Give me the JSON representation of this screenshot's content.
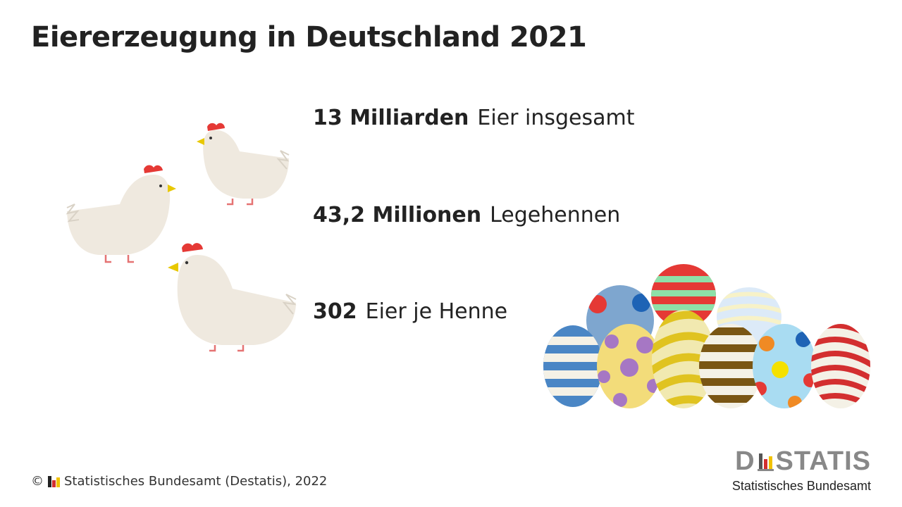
{
  "title": "Eiererzeugung in Deutschland 2021",
  "stats": [
    {
      "value": "13 Milliarden",
      "label": "Eier insgesamt"
    },
    {
      "value": "43,2 Millionen",
      "label": "Legehennen"
    },
    {
      "value": "302",
      "label": "Eier je Henne"
    }
  ],
  "footer": {
    "copyright": "©",
    "source": "Statistisches Bundesamt (Destatis), 2022"
  },
  "logo": {
    "word_start": "D",
    "word_end": "STATIS",
    "subtitle": "Statistisches Bundesamt"
  },
  "colors": {
    "flag_black": "#222222",
    "flag_red": "#d32f2f",
    "flag_gold": "#f2c200",
    "hen_body": "#efe9df",
    "hen_comb": "#e53935",
    "hen_beak": "#e8c800"
  },
  "icons": [
    "hen-icon",
    "easter-egg-icon",
    "flag-icon"
  ]
}
